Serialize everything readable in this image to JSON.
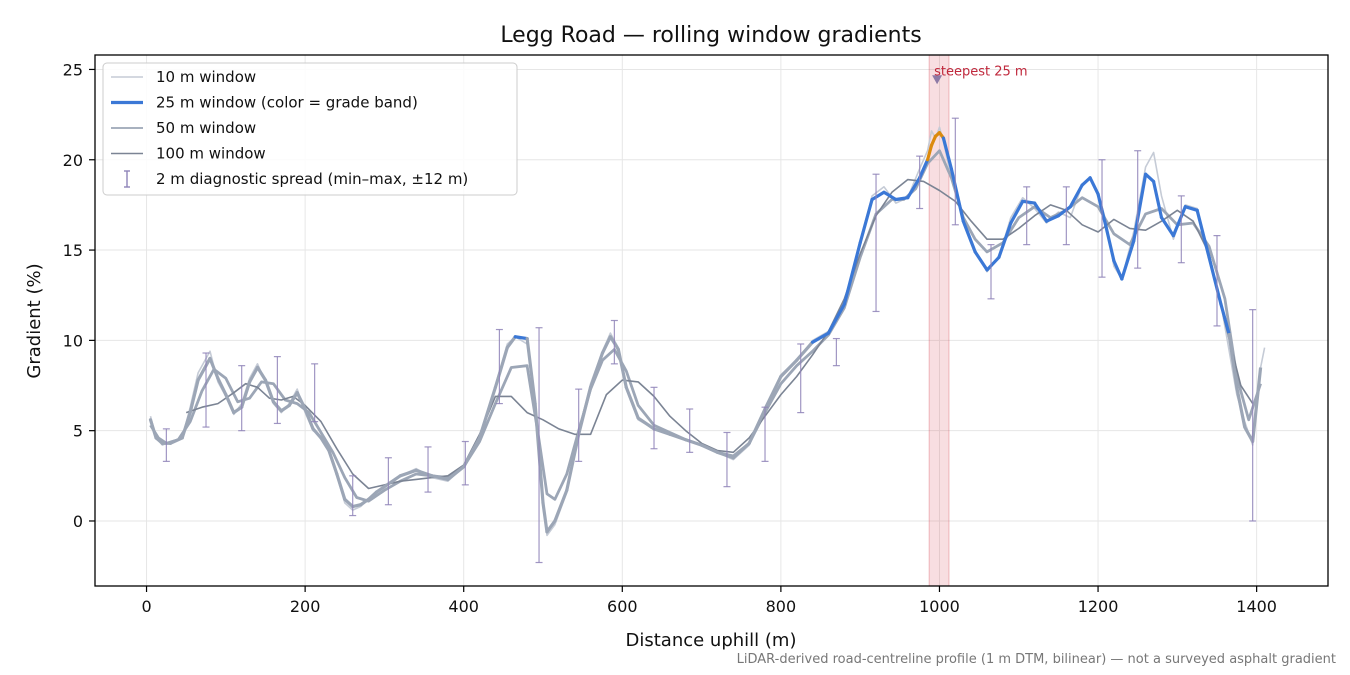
{
  "chart_data": {
    "type": "line",
    "title": "Legg Road — rolling window gradients",
    "xlabel": "Distance uphill (m)",
    "ylabel": "Gradient (%)",
    "xlim": [
      -65,
      1490
    ],
    "ylim": [
      -3.6,
      25.8
    ],
    "xticks": [
      0,
      200,
      400,
      600,
      800,
      1000,
      1200,
      1400
    ],
    "yticks": [
      0,
      5,
      10,
      15,
      20,
      25
    ],
    "grid": true,
    "legend_position": "top-left",
    "footnote": "LiDAR-derived road-centreline profile (1 m DTM, bilinear) — not a surveyed asphalt gradient",
    "series": [
      {
        "name": "10 m window",
        "color": "#c5cbd6",
        "x": [
          5,
          12,
          20,
          30,
          45,
          55,
          65,
          80,
          90,
          100,
          110,
          120,
          130,
          140,
          150,
          160,
          170,
          180,
          190,
          200,
          210,
          220,
          230,
          240,
          250,
          260,
          270,
          280,
          290,
          300,
          320,
          340,
          360,
          380,
          400,
          420,
          440,
          455,
          465,
          480,
          490,
          500,
          505,
          515,
          530,
          545,
          560,
          575,
          585,
          595,
          605,
          620,
          640,
          660,
          680,
          700,
          720,
          740,
          760,
          780,
          800,
          820,
          840,
          860,
          880,
          900,
          915,
          930,
          945,
          960,
          975,
          985,
          990,
          995,
          1000,
          1005,
          1015,
          1030,
          1045,
          1060,
          1075,
          1090,
          1105,
          1120,
          1135,
          1150,
          1165,
          1180,
          1190,
          1200,
          1210,
          1220,
          1230,
          1245,
          1260,
          1270,
          1280,
          1295,
          1310,
          1325,
          1340,
          1355,
          1365,
          1375,
          1385,
          1395,
          1400,
          1405,
          1410
        ],
        "values": [
          5.8,
          4.6,
          4.2,
          4.4,
          4.6,
          6.3,
          8.2,
          9.4,
          7.7,
          6.9,
          5.9,
          6.5,
          7.9,
          8.7,
          7.7,
          6.5,
          6.0,
          6.5,
          7.3,
          6.0,
          5.0,
          4.7,
          4.0,
          2.5,
          1.0,
          0.6,
          0.8,
          1.2,
          1.6,
          1.9,
          2.5,
          2.9,
          2.4,
          2.2,
          3.0,
          4.6,
          7.5,
          9.8,
          10.2,
          9.8,
          6.7,
          0.8,
          -0.8,
          -0.2,
          1.6,
          5.0,
          7.6,
          9.4,
          10.4,
          9.6,
          7.3,
          5.6,
          5.1,
          4.8,
          4.5,
          4.2,
          3.8,
          3.4,
          4.2,
          6.2,
          8.1,
          8.9,
          10.0,
          10.5,
          12.0,
          15.5,
          18.0,
          18.5,
          17.6,
          17.9,
          19.5,
          20.5,
          21.6,
          21.2,
          21.8,
          21.0,
          19.0,
          16.8,
          15.0,
          13.8,
          14.6,
          16.8,
          17.9,
          17.3,
          16.5,
          17.1,
          16.8,
          18.6,
          19.0,
          18.2,
          16.6,
          14.1,
          13.4,
          16.0,
          19.6,
          20.4,
          18.0,
          15.6,
          17.5,
          17.3,
          14.5,
          12.0,
          9.5,
          7.0,
          5.5,
          4.2,
          6.5,
          8.5,
          9.6
        ]
      },
      {
        "name": "25 m window (color = grade band)",
        "color": "#3b78d6",
        "accent_color": "#db8a0e",
        "x": [
          5,
          12,
          20,
          30,
          45,
          55,
          65,
          80,
          90,
          100,
          110,
          120,
          130,
          140,
          150,
          160,
          170,
          180,
          190,
          200,
          210,
          220,
          230,
          240,
          250,
          260,
          270,
          280,
          290,
          300,
          320,
          340,
          360,
          380,
          400,
          420,
          440,
          455,
          465,
          480,
          490,
          500,
          505,
          515,
          530,
          545,
          560,
          575,
          585,
          595,
          605,
          620,
          640,
          660,
          680,
          700,
          720,
          740,
          760,
          780,
          800,
          820,
          840,
          860,
          880,
          900,
          915,
          930,
          945,
          960,
          975,
          985,
          990,
          995,
          1000,
          1005,
          1015,
          1030,
          1045,
          1060,
          1075,
          1090,
          1105,
          1120,
          1135,
          1150,
          1165,
          1180,
          1190,
          1200,
          1210,
          1220,
          1230,
          1245,
          1260,
          1270,
          1280,
          1295,
          1310,
          1325,
          1340,
          1355,
          1365
        ],
        "values": [
          5.6,
          4.6,
          4.3,
          4.3,
          4.6,
          6.0,
          7.8,
          9.0,
          7.9,
          7.0,
          6.0,
          6.3,
          7.7,
          8.5,
          7.8,
          6.6,
          6.1,
          6.4,
          7.1,
          6.2,
          5.1,
          4.6,
          3.9,
          2.6,
          1.2,
          0.8,
          0.9,
          1.2,
          1.6,
          1.9,
          2.5,
          2.8,
          2.5,
          2.3,
          3.0,
          4.6,
          7.4,
          9.6,
          10.2,
          10.1,
          6.5,
          1.0,
          -0.6,
          0.0,
          1.7,
          4.8,
          7.4,
          9.3,
          10.2,
          9.5,
          7.4,
          5.7,
          5.1,
          4.8,
          4.5,
          4.2,
          3.8,
          3.5,
          4.3,
          6.2,
          8.0,
          8.9,
          9.9,
          10.4,
          12.0,
          15.4,
          17.8,
          18.2,
          17.8,
          17.9,
          19.0,
          20.0,
          20.8,
          21.3,
          21.5,
          21.2,
          19.5,
          16.6,
          14.9,
          13.9,
          14.6,
          16.5,
          17.7,
          17.6,
          16.6,
          16.9,
          17.4,
          18.6,
          19.0,
          18.1,
          16.3,
          14.4,
          13.4,
          15.5,
          19.2,
          18.8,
          16.8,
          15.8,
          17.4,
          17.2,
          14.6,
          12.0,
          10.4
        ],
        "tail_x": [
          1365,
          1375,
          1385,
          1395,
          1405
        ],
        "tail_values": [
          10.4,
          7.4,
          5.2,
          4.4,
          8.5
        ]
      },
      {
        "name": "50 m window",
        "color": "#9ca6b6",
        "x": [
          5,
          15,
          25,
          40,
          55,
          70,
          85,
          100,
          115,
          130,
          145,
          160,
          175,
          190,
          205,
          220,
          235,
          250,
          265,
          280,
          300,
          320,
          340,
          360,
          380,
          400,
          420,
          440,
          460,
          480,
          495,
          505,
          515,
          530,
          545,
          560,
          575,
          590,
          605,
          620,
          640,
          660,
          680,
          700,
          720,
          740,
          760,
          780,
          800,
          820,
          840,
          860,
          880,
          900,
          920,
          940,
          955,
          970,
          985,
          1000,
          1015,
          1030,
          1045,
          1060,
          1080,
          1100,
          1120,
          1140,
          1160,
          1180,
          1200,
          1220,
          1240,
          1260,
          1280,
          1300,
          1320,
          1340,
          1360,
          1375,
          1390,
          1405
        ],
        "values": [
          5.3,
          4.6,
          4.3,
          4.5,
          5.5,
          7.2,
          8.4,
          7.9,
          6.6,
          6.8,
          7.7,
          7.6,
          6.7,
          6.5,
          6.0,
          4.9,
          3.8,
          2.4,
          1.3,
          1.1,
          1.7,
          2.2,
          2.6,
          2.5,
          2.4,
          3.0,
          4.4,
          6.5,
          8.5,
          8.6,
          4.5,
          1.5,
          1.2,
          2.6,
          5.0,
          7.3,
          8.9,
          9.5,
          8.3,
          6.4,
          5.3,
          4.9,
          4.5,
          4.2,
          3.8,
          3.6,
          4.3,
          6.0,
          7.6,
          8.6,
          9.4,
          10.3,
          11.8,
          14.6,
          17.0,
          17.8,
          17.8,
          18.4,
          19.8,
          20.5,
          19.0,
          16.8,
          15.6,
          14.9,
          15.4,
          16.8,
          17.4,
          16.8,
          17.2,
          17.9,
          17.4,
          15.9,
          15.3,
          17.0,
          17.3,
          16.4,
          16.5,
          15.2,
          12.3,
          8.0,
          5.6,
          7.6
        ]
      },
      {
        "name": "100 m window",
        "color": "#7b8494",
        "x": [
          50,
          70,
          90,
          110,
          125,
          140,
          155,
          170,
          185,
          200,
          220,
          240,
          260,
          280,
          300,
          320,
          340,
          360,
          380,
          400,
          420,
          440,
          460,
          480,
          500,
          520,
          540,
          560,
          580,
          600,
          620,
          640,
          660,
          680,
          700,
          720,
          740,
          760,
          780,
          800,
          820,
          840,
          860,
          880,
          900,
          920,
          940,
          960,
          980,
          1000,
          1020,
          1040,
          1060,
          1080,
          1100,
          1120,
          1140,
          1160,
          1180,
          1200,
          1220,
          1240,
          1260,
          1280,
          1300,
          1320,
          1340,
          1360,
          1380,
          1395
        ],
        "values": [
          6.0,
          6.3,
          6.5,
          7.1,
          7.6,
          7.4,
          6.8,
          6.7,
          6.9,
          6.4,
          5.5,
          4.0,
          2.6,
          1.8,
          2.0,
          2.2,
          2.3,
          2.4,
          2.5,
          3.1,
          4.8,
          6.9,
          6.9,
          6.0,
          5.6,
          5.1,
          4.8,
          4.8,
          7.0,
          7.8,
          7.7,
          6.9,
          5.8,
          5.0,
          4.3,
          3.9,
          3.8,
          4.6,
          5.8,
          7.0,
          8.0,
          9.2,
          10.5,
          12.3,
          14.8,
          16.9,
          18.2,
          18.9,
          18.8,
          18.3,
          17.7,
          16.6,
          15.6,
          15.6,
          16.2,
          16.9,
          17.5,
          17.2,
          16.4,
          16.0,
          16.7,
          16.2,
          16.1,
          16.6,
          17.2,
          16.6,
          14.8,
          11.0,
          7.5,
          6.5
        ]
      }
    ],
    "error_bars": {
      "name": "2 m diagnostic spread (min–max, ±12 m)",
      "color": "#8f84b8",
      "x": [
        25,
        75,
        120,
        165,
        212,
        260,
        305,
        355,
        402,
        445,
        495,
        545,
        590,
        640,
        685,
        732,
        780,
        825,
        870,
        920,
        975,
        1020,
        1065,
        1110,
        1160,
        1205,
        1250,
        1305,
        1350,
        1395
      ],
      "low": [
        3.3,
        5.2,
        5.0,
        5.4,
        5.5,
        0.3,
        0.9,
        1.6,
        2.0,
        6.5,
        -2.3,
        3.3,
        8.7,
        4.0,
        3.8,
        1.9,
        3.3,
        6.0,
        8.6,
        11.6,
        17.3,
        16.4,
        12.3,
        15.3,
        15.3,
        13.5,
        14.0,
        14.3,
        10.8,
        0.0
      ],
      "high": [
        5.1,
        9.3,
        8.6,
        9.1,
        8.7,
        2.5,
        3.5,
        4.1,
        4.4,
        10.6,
        10.7,
        7.3,
        11.1,
        7.4,
        6.2,
        4.9,
        6.3,
        9.8,
        10.1,
        19.2,
        20.2,
        22.3,
        15.3,
        18.5,
        18.5,
        20.0,
        20.5,
        18.0,
        15.8,
        11.7
      ]
    },
    "highlight": {
      "x_range": [
        987,
        1012
      ],
      "color": "#d84a5a",
      "marker_x": 997,
      "marker_y": 24.4,
      "annotation": "steepest 25 m"
    }
  }
}
